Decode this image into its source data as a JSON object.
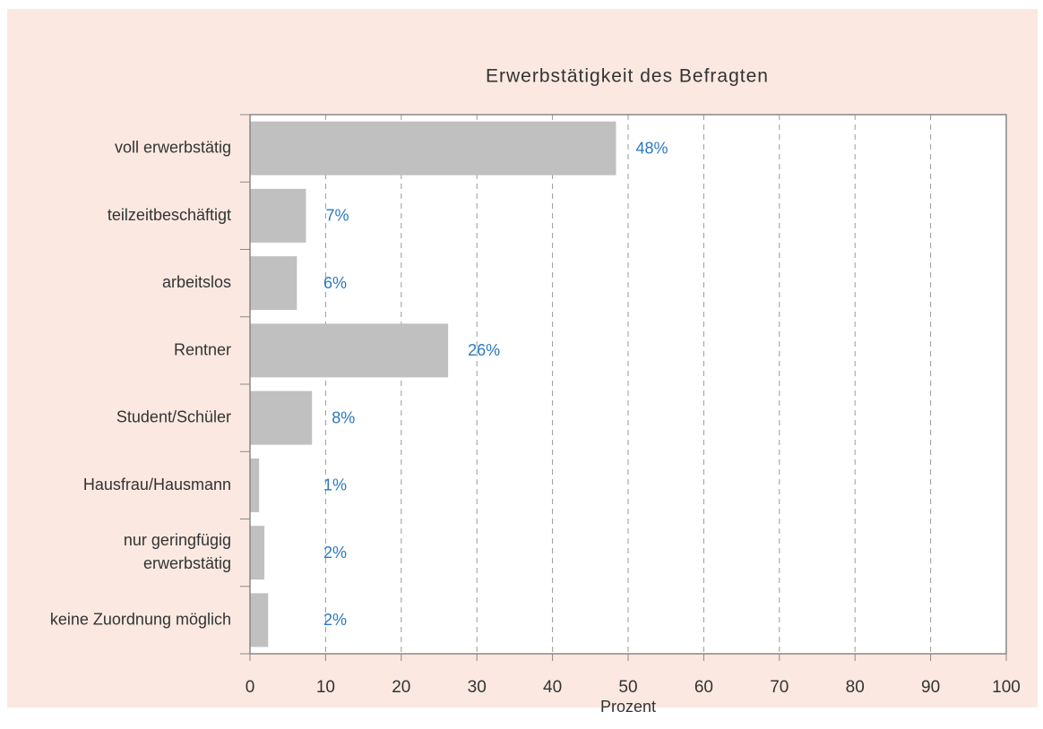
{
  "chart_data": {
    "type": "bar",
    "orientation": "horizontal",
    "title": "Erwerbstätigkeit des Befragten",
    "x_label": "Prozent",
    "categories": [
      "voll erwerbstätig",
      "teilzeitbeschäftigt",
      "arbeitslos",
      "Rentner",
      "Student/Schüler",
      "Hausfrau/Hausmann",
      "nur geringfügig\nerwerbstätig",
      "keine Zuordnung möglich"
    ],
    "values": [
      48.4,
      7.4,
      6.2,
      26.2,
      8.2,
      1.2,
      1.9,
      2.4
    ],
    "value_labels": [
      "48%",
      "7%",
      "6%",
      "26%",
      "8%",
      "1%",
      "2%",
      "2%"
    ],
    "color": "#c0c0c0",
    "label_color": "#2a78c2",
    "xlim": [
      0,
      100
    ],
    "xticks": [
      0,
      10,
      20,
      30,
      40,
      50,
      60,
      70,
      80,
      90,
      100
    ],
    "grid": true
  }
}
